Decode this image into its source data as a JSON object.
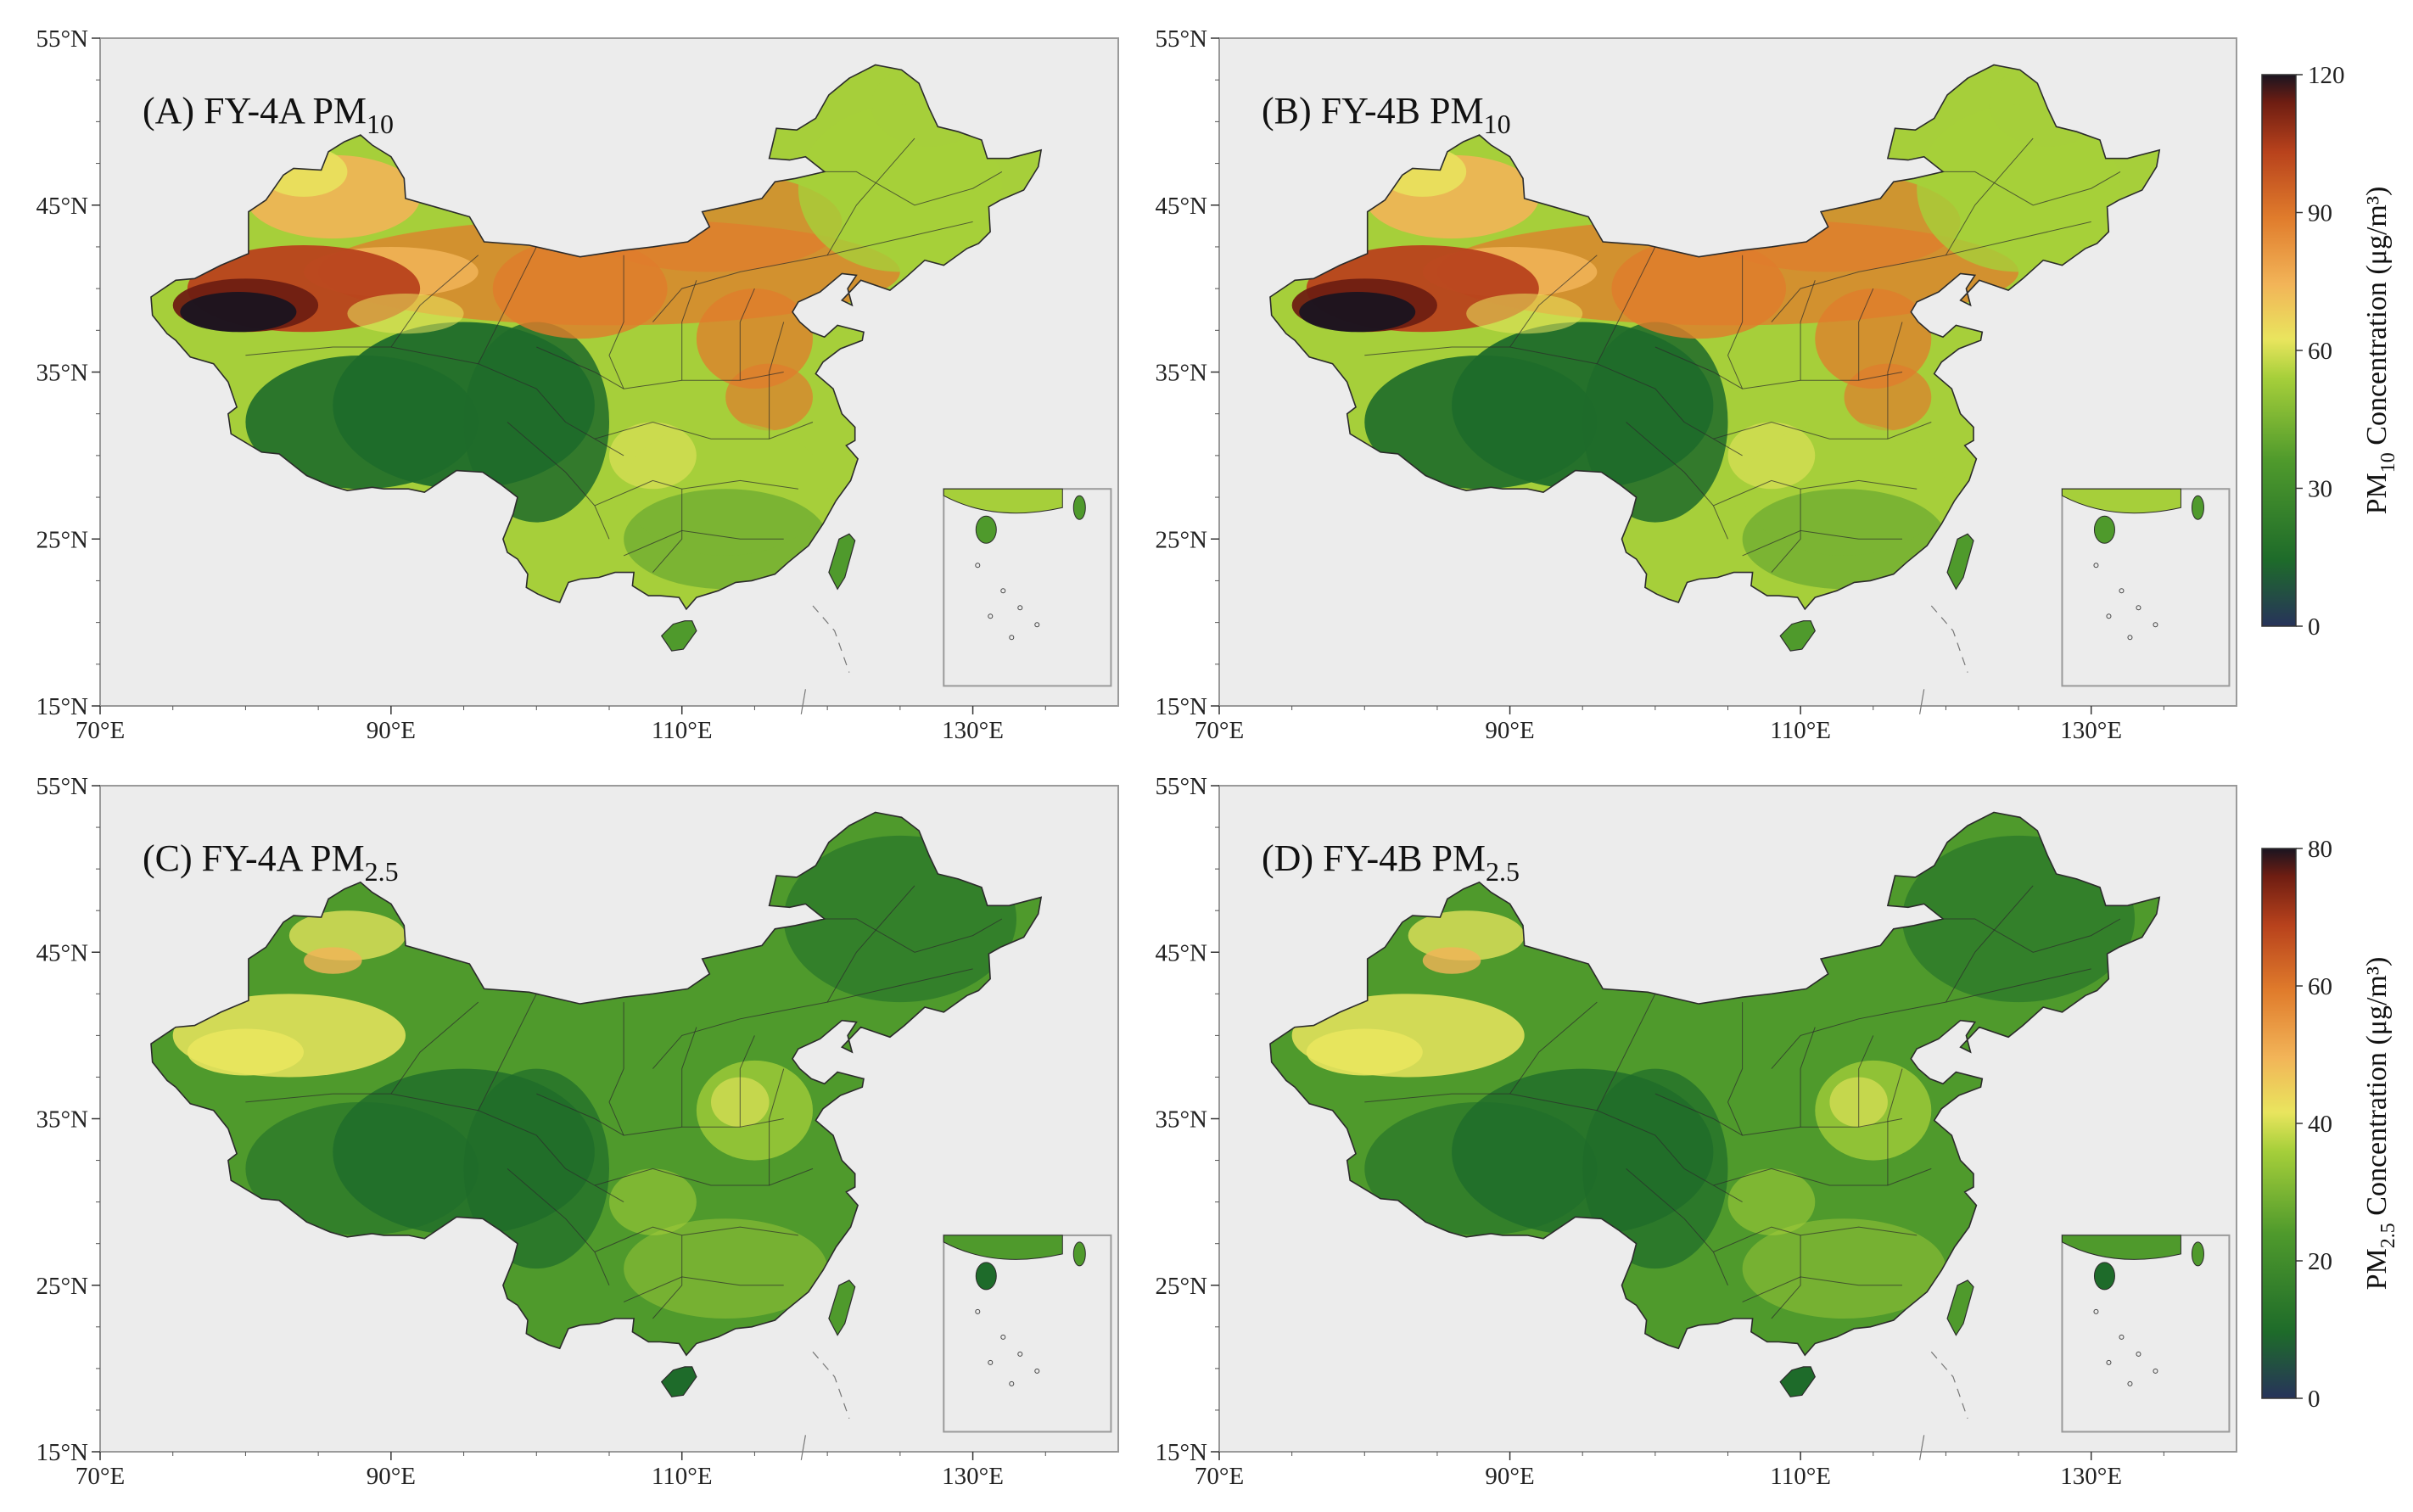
{
  "figure": {
    "panels": [
      {
        "id": "A",
        "title_main": "(A) FY-4A PM",
        "title_sub": "10",
        "pollutant": "PM10",
        "satellite": "FY-4A"
      },
      {
        "id": "B",
        "title_main": "(B) FY-4B PM",
        "title_sub": "10",
        "pollutant": "PM10",
        "satellite": "FY-4B"
      },
      {
        "id": "C",
        "title_main": "(C) FY-4A PM",
        "title_sub": "2.5",
        "pollutant": "PM2.5",
        "satellite": "FY-4A"
      },
      {
        "id": "D",
        "title_main": "(D) FY-4B PM",
        "title_sub": "2.5",
        "pollutant": "PM2.5",
        "satellite": "FY-4B"
      }
    ],
    "axes": {
      "lat_ticks": [
        "55°N",
        "45°N",
        "35°N",
        "25°N",
        "15°N"
      ],
      "lon_ticks": [
        "70°E",
        "90°E",
        "110°E",
        "130°E"
      ],
      "lat_values": [
        55,
        45,
        35,
        25,
        15
      ],
      "lon_values": [
        70,
        90,
        110,
        130
      ],
      "lat_range": [
        15,
        55
      ],
      "lon_range": [
        70,
        140
      ]
    },
    "colorbars": [
      {
        "pollutant": "PM10",
        "label_prefix": "PM",
        "label_sub": "10",
        "label_suffix": " Concentration (μg/m³)",
        "ticks": [
          "120",
          "90",
          "60",
          "30",
          "0"
        ],
        "tick_values": [
          120,
          90,
          60,
          30,
          0
        ],
        "range": [
          0,
          120
        ]
      },
      {
        "pollutant": "PM2.5",
        "label_prefix": "PM",
        "label_sub": "2.5",
        "label_suffix": " Concentration (μg/m³)",
        "ticks": [
          "80",
          "60",
          "40",
          "20",
          "0"
        ],
        "tick_values": [
          80,
          60,
          40,
          20,
          0
        ],
        "range": [
          0,
          80
        ]
      }
    ],
    "colors": {
      "background": "#ececec",
      "frame": "#9a9a9a",
      "border": "#2b2b2b",
      "c0": "#27335a",
      "c1": "#1e6b2a",
      "c2": "#4f9a2c",
      "c3": "#a6cf3a",
      "c4": "#e9e55e",
      "c5": "#f2b458",
      "c6": "#e07c2c",
      "c7": "#b8421c",
      "c8": "#6e1d12",
      "c9": "#1a1420"
    }
  }
}
